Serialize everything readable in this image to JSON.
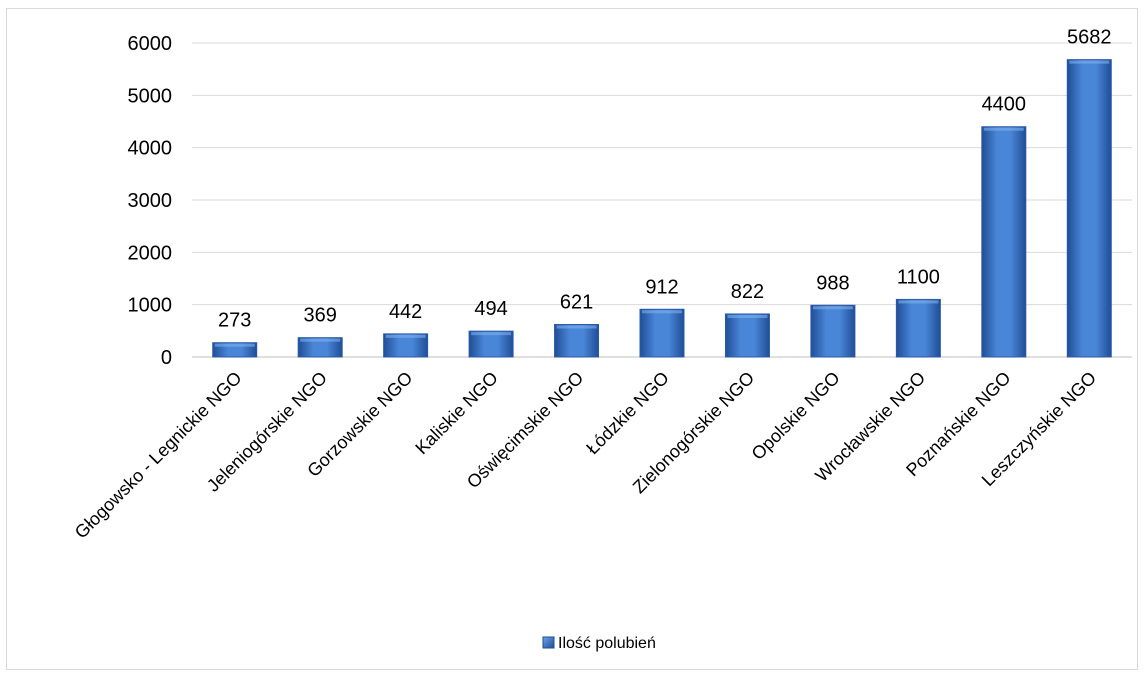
{
  "chart_data": {
    "type": "bar",
    "categories": [
      "Głogowsko - Legnickie NGO",
      "Jeleniogórskie NGO",
      "Gorzowskie NGO",
      "Kaliskie NGO",
      "Oświęcimskie NGO",
      "Łódzkie NGO",
      "Zielonogórskie NGO",
      "Opolskie NGO",
      "Wrocławskie NGO",
      "Poznańskie NGO",
      "Leszczyńskie NGO"
    ],
    "series": [
      {
        "name": "Ilość polubień",
        "values": [
          273,
          369,
          442,
          494,
          621,
          912,
          822,
          988,
          1100,
          4400,
          5682
        ],
        "color": "#3a6fc4"
      }
    ],
    "data_labels": [
      "273",
      "369",
      "442",
      "494",
      "621",
      "912",
      "822",
      "988",
      "1100",
      "4400",
      "5682"
    ],
    "ylim": [
      0,
      6000
    ],
    "yticks": [
      "0",
      "1000",
      "2000",
      "3000",
      "4000",
      "5000",
      "6000"
    ],
    "grid": true,
    "legend": "bottom-center",
    "title": "",
    "xlabel": "",
    "ylabel": ""
  }
}
